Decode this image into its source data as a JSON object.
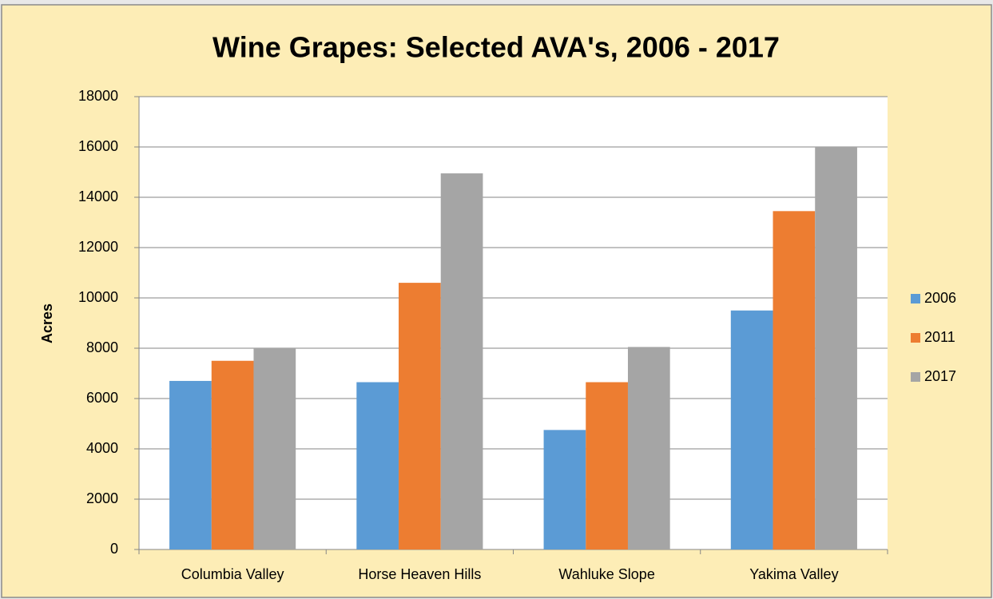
{
  "chart_data": {
    "type": "bar",
    "title": "Wine Grapes:  Selected AVA's, 2006 - 2017",
    "y_label": "Acres",
    "categories": [
      "Columbia Valley",
      "Horse Heaven Hills",
      "Wahluke Slope",
      "Yakima Valley"
    ],
    "series": [
      {
        "name": "2006",
        "color": "#5b9bd5",
        "values": [
          6700,
          6650,
          4750,
          9500
        ]
      },
      {
        "name": "2011",
        "color": "#ed7d31",
        "values": [
          7500,
          10600,
          6650,
          13450
        ]
      },
      {
        "name": "2017",
        "color": "#a5a5a5",
        "values": [
          8000,
          14950,
          8050,
          16000
        ]
      }
    ],
    "ylim": [
      0,
      18000
    ],
    "yticks": [
      0,
      2000,
      4000,
      6000,
      8000,
      10000,
      12000,
      14000,
      16000,
      18000
    ],
    "grid": true,
    "legend": "right"
  }
}
